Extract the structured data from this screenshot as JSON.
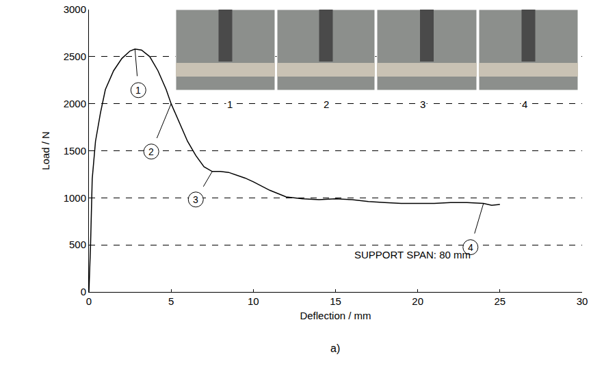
{
  "chart_data": {
    "type": "line",
    "color": "#000000",
    "xlabel": "Deflection / mm",
    "ylabel": "Load / N",
    "x": [
      0,
      0.1,
      0.2,
      0.4,
      0.7,
      1,
      1.5,
      2,
      2.5,
      2.8,
      3.2,
      3.7,
      4.2,
      4.7,
      5,
      5.5,
      6,
      6.5,
      7,
      7.5,
      8,
      8.5,
      9,
      9.5,
      10,
      11,
      12,
      13,
      14,
      15,
      16,
      17,
      18,
      19,
      20,
      21,
      22,
      23,
      24,
      24.5,
      25
    ],
    "values": [
      0,
      500,
      1200,
      1600,
      1900,
      2150,
      2350,
      2480,
      2560,
      2580,
      2570,
      2500,
      2350,
      2150,
      2000,
      1800,
      1600,
      1450,
      1330,
      1280,
      1280,
      1270,
      1240,
      1210,
      1170,
      1080,
      1010,
      990,
      980,
      990,
      980,
      960,
      950,
      940,
      940,
      940,
      950,
      950,
      940,
      920,
      930
    ],
    "xlim": [
      0,
      30
    ],
    "ylim": [
      0,
      3000
    ],
    "xticks": [
      0,
      5,
      10,
      15,
      20,
      25,
      30
    ],
    "yticks": [
      0,
      500,
      1000,
      1500,
      2000,
      2500,
      3000
    ],
    "grid": true,
    "point_labels": [
      {
        "text": "1",
        "x": 2.8,
        "y": 2580
      },
      {
        "text": "2",
        "x": 5,
        "y": 2000
      },
      {
        "text": "3",
        "x": 7.5,
        "y": 1280
      },
      {
        "text": "4",
        "x": 24,
        "y": 940
      }
    ],
    "inset_labels": [
      "1",
      "2",
      "3",
      "4"
    ],
    "annotation": "SUPPORT SPAN: 80 mm",
    "caption": "a)"
  }
}
